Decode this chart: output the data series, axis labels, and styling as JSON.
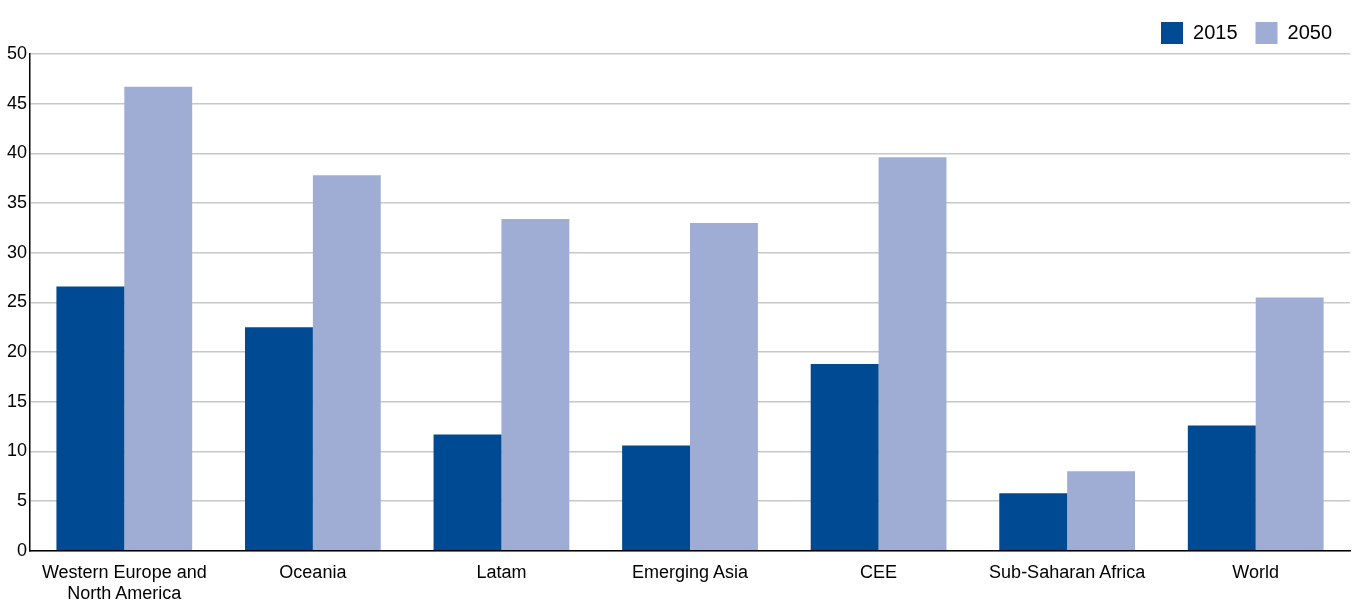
{
  "chart_data": {
    "type": "bar",
    "categories": [
      "Western Europe and North America",
      "Oceania",
      "Latam",
      "Emerging Asia",
      "CEE",
      "Sub-Saharan Africa",
      "World"
    ],
    "series": [
      {
        "name": "2015",
        "color": "#004a93",
        "values": [
          26.6,
          22.5,
          11.7,
          10.6,
          18.8,
          5.8,
          12.6
        ]
      },
      {
        "name": "2050",
        "color": "#9fadd4",
        "values": [
          46.7,
          37.8,
          33.4,
          33.0,
          39.6,
          8.0,
          25.5
        ]
      }
    ],
    "ylim": [
      0,
      50
    ],
    "yticks": [
      0,
      5,
      10,
      15,
      20,
      25,
      30,
      35,
      40,
      45,
      50
    ],
    "grid": "y",
    "legend": "top right"
  }
}
